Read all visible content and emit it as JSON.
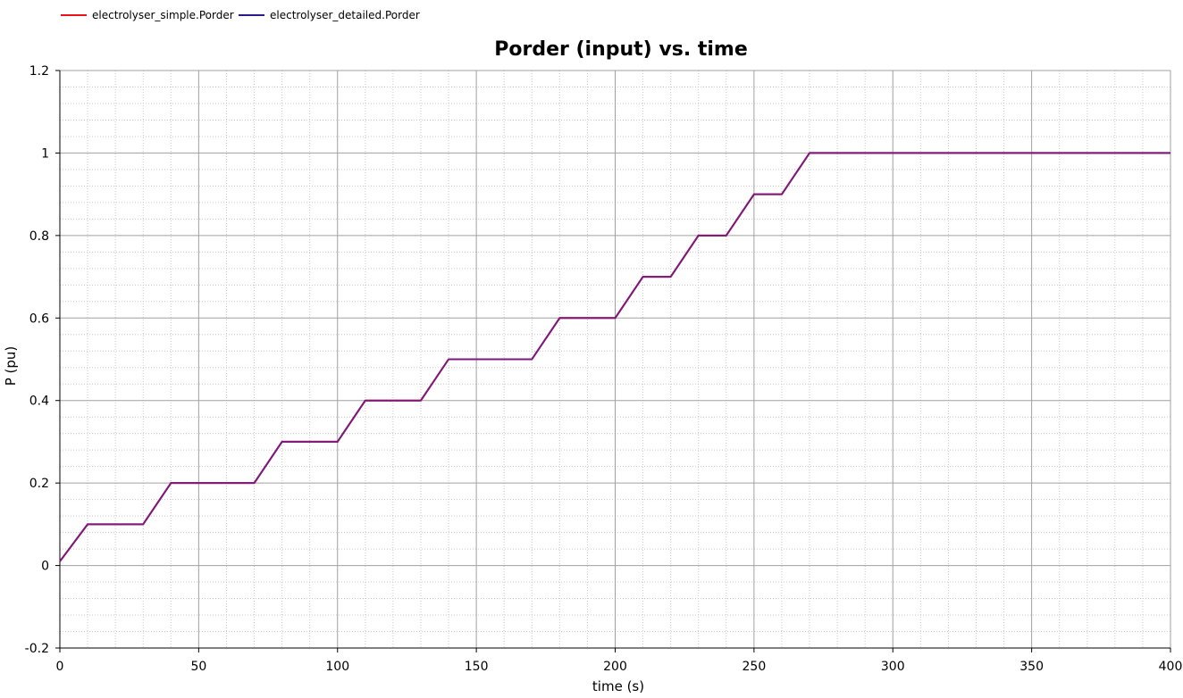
{
  "chart_data": {
    "type": "line",
    "title": "Porder (input) vs. time",
    "xlabel": "time (s)",
    "ylabel": "P (pu)",
    "xlim": [
      0,
      400
    ],
    "ylim": [
      -0.2,
      1.2
    ],
    "x_ticks": [
      0,
      50,
      100,
      150,
      200,
      250,
      300,
      350,
      400
    ],
    "x_tick_labels": [
      "0",
      "50",
      "100",
      "150",
      "200",
      "250",
      "300",
      "350",
      "400"
    ],
    "y_ticks": [
      -0.2,
      0,
      0.2,
      0.4,
      0.6,
      0.8,
      1,
      1.2
    ],
    "y_tick_labels": [
      "-0.2",
      "0",
      "0.2",
      "0.4",
      "0.6",
      "0.8",
      "1",
      "1.2"
    ],
    "grid": true,
    "legend_position": "top-left",
    "series": [
      {
        "name": "electrolyser_simple.Porder",
        "color": "#e8141a",
        "x": [
          0,
          10,
          30,
          40,
          70,
          80,
          100,
          110,
          130,
          140,
          170,
          180,
          200,
          210,
          220,
          230,
          240,
          250,
          260,
          270,
          400
        ],
        "y": [
          0.01,
          0.1,
          0.1,
          0.2,
          0.2,
          0.3,
          0.3,
          0.4,
          0.4,
          0.5,
          0.5,
          0.6,
          0.6,
          0.7,
          0.7,
          0.8,
          0.8,
          0.9,
          0.9,
          1.0,
          1.0
        ]
      },
      {
        "name": "electrolyser_detailed.Porder",
        "color": "#2a1a8c",
        "x": [
          0,
          10,
          30,
          40,
          70,
          80,
          100,
          110,
          130,
          140,
          170,
          180,
          200,
          210,
          220,
          230,
          240,
          250,
          260,
          270,
          400
        ],
        "y": [
          0.01,
          0.1,
          0.1,
          0.2,
          0.2,
          0.3,
          0.3,
          0.4,
          0.4,
          0.5,
          0.5,
          0.6,
          0.6,
          0.7,
          0.7,
          0.8,
          0.8,
          0.9,
          0.9,
          1.0,
          1.0
        ]
      }
    ],
    "overlap_color": "#7a1a7e"
  }
}
